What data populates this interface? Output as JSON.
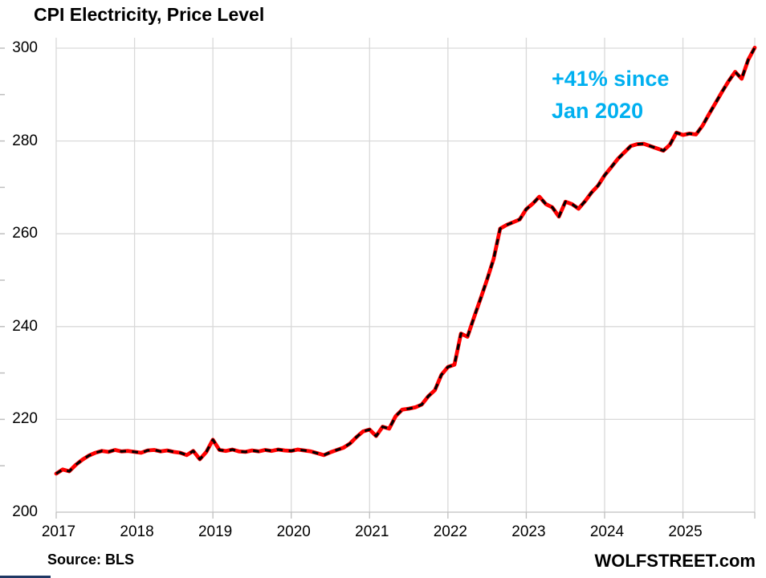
{
  "title": "CPI Electricity, Price Level",
  "annotation": {
    "line1": "+41% since",
    "line2": "Jan 2020",
    "color": "#00B0F0"
  },
  "source_note": "Source: BLS",
  "branding": "WOLFSTREET.com",
  "colors": {
    "line": "#FF0000",
    "dash_overlay": "#000000",
    "annotation_blue": "#00B0F0",
    "gridline": "#D9D9D9",
    "axis": "#BFBFBF",
    "text": "#000000",
    "bottom_bar_blue": "#1F3864",
    "background": "#FFFFFF"
  },
  "chart_data": {
    "type": "line",
    "title": "CPI Electricity, Price Level",
    "xlabel": "",
    "ylabel": "",
    "frequency": "monthly",
    "start_month": "2017-01",
    "end_month": "2025-12",
    "x_tick_labels": [
      "2017",
      "2018",
      "2019",
      "2020",
      "2021",
      "2022",
      "2023",
      "2024",
      "2025"
    ],
    "y_tick_labels": [
      "200",
      "220",
      "240",
      "260",
      "280",
      "300"
    ],
    "y_tick_values": [
      200,
      220,
      240,
      260,
      280,
      300
    ],
    "ylim": [
      200,
      302.5
    ],
    "grid": true,
    "legend": "none",
    "line_style": "red solid line with black dash overlay",
    "annotation_text": "+41% since Jan 2020",
    "values": [
      208.3,
      209.2,
      208.8,
      210.2,
      211.3,
      212.2,
      212.8,
      213.2,
      213.0,
      213.4,
      213.1,
      213.2,
      213.0,
      212.8,
      213.3,
      213.4,
      213.1,
      213.3,
      213.0,
      212.8,
      212.3,
      213.2,
      211.4,
      213.0,
      215.6,
      213.4,
      213.2,
      213.5,
      213.1,
      213.0,
      213.3,
      213.1,
      213.4,
      213.2,
      213.5,
      213.3,
      213.2,
      213.5,
      213.3,
      213.1,
      212.7,
      212.3,
      212.9,
      213.4,
      213.9,
      214.8,
      216.2,
      217.4,
      217.8,
      216.4,
      218.4,
      218.0,
      220.7,
      222.1,
      222.3,
      222.6,
      223.2,
      225.0,
      226.3,
      229.6,
      231.3,
      231.8,
      238.5,
      237.8,
      242.0,
      246.0,
      250.1,
      254.6,
      261.1,
      261.9,
      262.5,
      263.1,
      265.3,
      266.5,
      268.0,
      266.4,
      265.7,
      263.7,
      266.9,
      266.4,
      265.4,
      267.0,
      268.9,
      270.4,
      272.6,
      274.3,
      276.1,
      277.5,
      278.9,
      279.3,
      279.4,
      278.9,
      278.4,
      277.9,
      279.2,
      281.8,
      281.3,
      281.6,
      281.4,
      283.3,
      285.8,
      288.2,
      290.6,
      292.9,
      294.9,
      293.4,
      297.5,
      300.1
    ]
  }
}
